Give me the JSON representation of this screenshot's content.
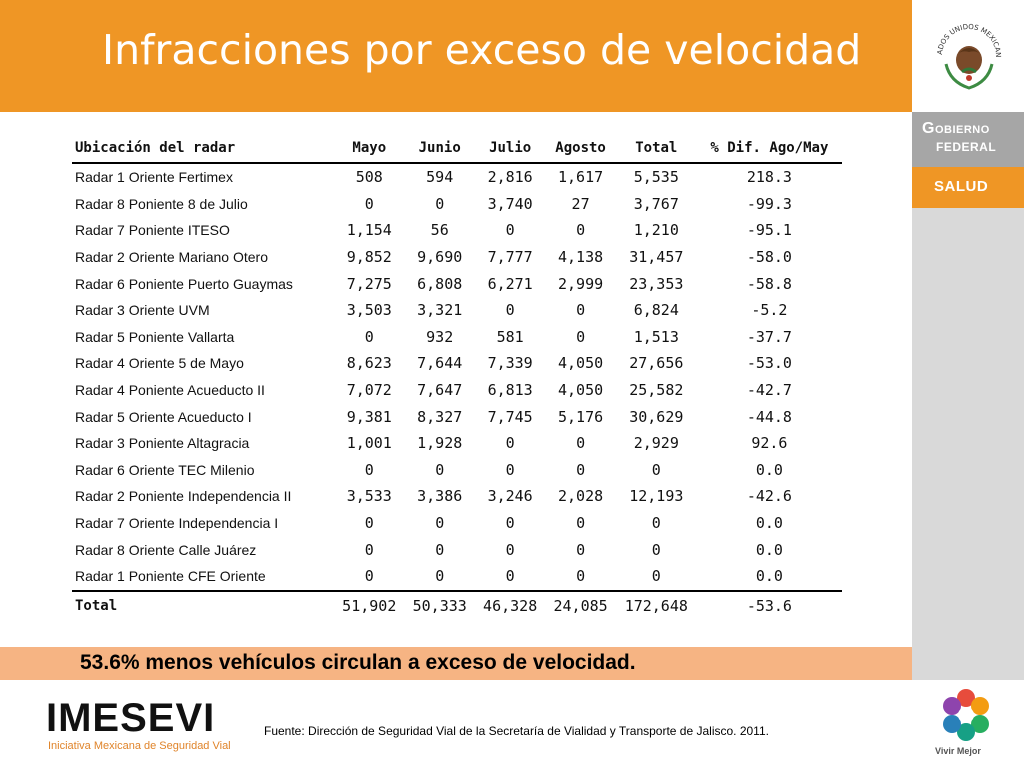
{
  "header": {
    "title": "Infracciones por exceso de velocidad"
  },
  "sidebar": {
    "gobierno_l1": "Gobierno",
    "gobierno_l2": "FEDERAL",
    "salud": "SALUD",
    "seal_text": "ESTADOS UNIDOS MEXICANOS"
  },
  "table": {
    "headers": [
      "Ubicación del radar",
      "Mayo",
      "Junio",
      "Julio",
      "Agosto",
      "Total",
      "% Dif. Ago/May"
    ],
    "rows": [
      [
        "Radar 1 Oriente Fertimex",
        "508",
        "594",
        "2,816",
        "1,617",
        "5,535",
        "218.3"
      ],
      [
        "Radar 8 Poniente 8 de Julio",
        "0",
        "0",
        "3,740",
        "27",
        "3,767",
        "-99.3"
      ],
      [
        "Radar 7 Poniente ITESO",
        "1,154",
        "56",
        "0",
        "0",
        "1,210",
        "-95.1"
      ],
      [
        "Radar 2 Oriente Mariano Otero",
        "9,852",
        "9,690",
        "7,777",
        "4,138",
        "31,457",
        "-58.0"
      ],
      [
        "Radar 6 Poniente Puerto Guaymas",
        "7,275",
        "6,808",
        "6,271",
        "2,999",
        "23,353",
        "-58.8"
      ],
      [
        "Radar 3 Oriente UVM",
        "3,503",
        "3,321",
        "0",
        "0",
        "6,824",
        "-5.2"
      ],
      [
        "Radar 5 Poniente Vallarta",
        "0",
        "932",
        "581",
        "0",
        "1,513",
        "-37.7"
      ],
      [
        "Radar 4 Oriente 5 de Mayo",
        "8,623",
        "7,644",
        "7,339",
        "4,050",
        "27,656",
        "-53.0"
      ],
      [
        "Radar 4 Poniente Acueducto II",
        "7,072",
        "7,647",
        "6,813",
        "4,050",
        "25,582",
        "-42.7"
      ],
      [
        "Radar 5 Oriente Acueducto I",
        "9,381",
        "8,327",
        "7,745",
        "5,176",
        "30,629",
        "-44.8"
      ],
      [
        "Radar 3 Poniente Altagracia",
        "1,001",
        "1,928",
        "0",
        "0",
        "2,929",
        "92.6"
      ],
      [
        "Radar 6 Oriente TEC Milenio",
        "0",
        "0",
        "0",
        "0",
        "0",
        "0.0"
      ],
      [
        "Radar 2 Poniente Independencia II",
        "3,533",
        "3,386",
        "3,246",
        "2,028",
        "12,193",
        "-42.6"
      ],
      [
        "Radar 7 Oriente Independencia I",
        "0",
        "0",
        "0",
        "0",
        "0",
        "0.0"
      ],
      [
        "Radar 8 Oriente Calle Juárez",
        "0",
        "0",
        "0",
        "0",
        "0",
        "0.0"
      ],
      [
        "Radar 1 Poniente CFE Oriente",
        "0",
        "0",
        "0",
        "0",
        "0",
        "0.0"
      ]
    ],
    "total": [
      "Total",
      "51,902",
      "50,333",
      "46,328",
      "24,085",
      "172,648",
      "-53.6"
    ]
  },
  "summary": "53.6% menos vehículos circulan a exceso de velocidad.",
  "footer": {
    "logo_text": "IMESEVI",
    "logo_sub": "Iniciativa Mexicana de Seguridad Vial",
    "source": "Fuente: Dirección de Seguridad Vial de la Secretaría de Vialidad y Transporte de Jalisco. 2011.",
    "vivir": "Vivir Mejor"
  },
  "colors": {
    "orange": "#ef9625",
    "summary_bg": "#f6b483",
    "sidebar": "#d9d9d9",
    "gobierno": "#a6a6a6"
  },
  "icons": [
    "mexican-seal-icon",
    "vivir-mejor-flower-icon"
  ]
}
